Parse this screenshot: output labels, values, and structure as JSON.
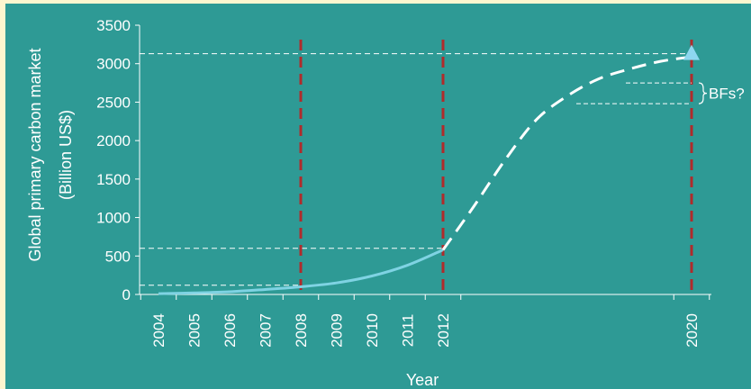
{
  "chart_data": {
    "type": "line",
    "xlabel": "Year",
    "ylabel_line1": "Global primary carbon market",
    "ylabel_line2": "(Billion US$)",
    "x_ticks": [
      "2004",
      "2005",
      "2006",
      "2007",
      "2008",
      "2009",
      "2010",
      "2011",
      "2012",
      "2020"
    ],
    "y_ticks": [
      "0",
      "500",
      "1000",
      "1500",
      "2000",
      "2500",
      "3000",
      "3500"
    ],
    "ylim": [
      0,
      3500
    ],
    "series": [
      {
        "style": "solid",
        "points": [
          {
            "x": 2004,
            "y": 10
          },
          {
            "x": 2005,
            "y": 20
          },
          {
            "x": 2006,
            "y": 35
          },
          {
            "x": 2007,
            "y": 65
          },
          {
            "x": 2008,
            "y": 100
          },
          {
            "x": 2009,
            "y": 150
          },
          {
            "x": 2010,
            "y": 240
          },
          {
            "x": 2011,
            "y": 380
          },
          {
            "x": 2012,
            "y": 580
          }
        ]
      },
      {
        "style": "dashed",
        "points": [
          {
            "x": 2012,
            "y": 580
          },
          {
            "x": 2013,
            "y": 1150
          },
          {
            "x": 2014,
            "y": 1750
          },
          {
            "x": 2015,
            "y": 2270
          },
          {
            "x": 2016,
            "y": 2580
          },
          {
            "x": 2017,
            "y": 2800
          },
          {
            "x": 2018,
            "y": 2930
          },
          {
            "x": 2019,
            "y": 3030
          },
          {
            "x": 2020,
            "y": 3090
          }
        ]
      }
    ],
    "endpoint_marker": {
      "x": 2020,
      "y": 3130,
      "shape": "triangle"
    },
    "reference_vertical_lines": [
      2008,
      2012,
      2020
    ],
    "reference_horizontal_lines": [
      {
        "y": 120,
        "x_end": 2008
      },
      {
        "y": 600,
        "x_end": 2012
      },
      {
        "y": 3130,
        "x_end": 2020
      }
    ],
    "range_annotation": {
      "label": "BFs?",
      "y_low": 2480,
      "y_high": 2750
    },
    "colors": {
      "background": "#2e9a95",
      "outer_background": "#fdf6cf",
      "solid_line": "#7fd3e3",
      "dashed_line": "#ffffff",
      "vertical_reference": "#b02b2b",
      "horizontal_reference": "#ffffff",
      "marker": "#8ed7f0",
      "axis": "#ffffff"
    },
    "grid": false
  }
}
